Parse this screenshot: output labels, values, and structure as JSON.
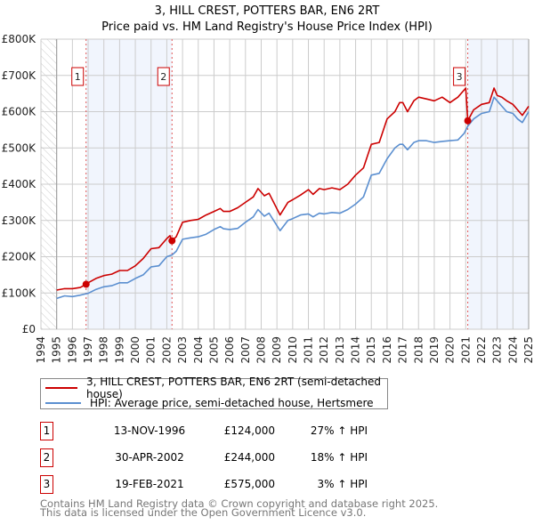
{
  "chart_data": {
    "type": "line",
    "title": "3, HILL CREST, POTTERS BAR, EN6 2RT",
    "subtitle": "Price paid vs. HM Land Registry's House Price Index (HPI)",
    "xlim": [
      1994,
      2025
    ],
    "ylim": [
      0,
      800000
    ],
    "x_ticks": [
      "1994",
      "1995",
      "1996",
      "1997",
      "1998",
      "1999",
      "2000",
      "2001",
      "2002",
      "2003",
      "2004",
      "2005",
      "2006",
      "2007",
      "2008",
      "2009",
      "2010",
      "2011",
      "2012",
      "2013",
      "2014",
      "2015",
      "2016",
      "2017",
      "2018",
      "2019",
      "2020",
      "2021",
      "2022",
      "2023",
      "2024",
      "2025"
    ],
    "y_ticks": [
      {
        "v": 0,
        "label": "£0"
      },
      {
        "v": 100000,
        "label": "£100K"
      },
      {
        "v": 200000,
        "label": "£200K"
      },
      {
        "v": 300000,
        "label": "£300K"
      },
      {
        "v": 400000,
        "label": "£400K"
      },
      {
        "v": 500000,
        "label": "£500K"
      },
      {
        "v": 600000,
        "label": "£600K"
      },
      {
        "v": 700000,
        "label": "£700K"
      },
      {
        "v": 800000,
        "label": "£800K"
      }
    ],
    "grid": true,
    "series": [
      {
        "name": "3, HILL CREST, POTTERS BAR, EN6 2RT (semi-detached house)",
        "color": "#cc0000",
        "x": [
          1995,
          1995.5,
          1996,
          1996.5,
          1996.87,
          1997,
          1997.5,
          1998,
          1998.5,
          1999,
          1999.5,
          2000,
          2000.5,
          2001,
          2001.5,
          2002,
          2002.2,
          2002.33,
          2002.6,
          2003,
          2003.5,
          2004,
          2004.5,
          2005,
          2005.4,
          2005.6,
          2006,
          2006.5,
          2007,
          2007.5,
          2007.8,
          2008.2,
          2008.5,
          2009.2,
          2009.7,
          2010,
          2010.5,
          2011,
          2011.3,
          2011.7,
          2012,
          2012.5,
          2013,
          2013.5,
          2014,
          2014.5,
          2015,
          2015.5,
          2016,
          2016.5,
          2016.8,
          2017,
          2017.3,
          2017.7,
          2018,
          2018.5,
          2019,
          2019.5,
          2020,
          2020.5,
          2020.9,
          2021.0,
          2021.13,
          2021.5,
          2022,
          2022.5,
          2022.8,
          2023,
          2023.3,
          2023.6,
          2024,
          2024.3,
          2024.6,
          2025
        ],
        "y": [
          108000,
          112000,
          112000,
          115000,
          124000,
          128000,
          140000,
          148000,
          152000,
          162000,
          162000,
          175000,
          195000,
          222000,
          225000,
          250000,
          258000,
          244000,
          255000,
          295000,
          300000,
          303000,
          315000,
          325000,
          333000,
          325000,
          325000,
          335000,
          350000,
          365000,
          388000,
          368000,
          375000,
          315000,
          350000,
          357000,
          370000,
          385000,
          372000,
          388000,
          385000,
          390000,
          385000,
          400000,
          425000,
          445000,
          510000,
          515000,
          580000,
          600000,
          625000,
          625000,
          600000,
          630000,
          640000,
          635000,
          630000,
          640000,
          625000,
          640000,
          660000,
          665000,
          575000,
          605000,
          620000,
          625000,
          665000,
          645000,
          640000,
          630000,
          620000,
          605000,
          590000,
          615000
        ]
      },
      {
        "name": "HPI: Average price, semi-detached house, Hertsmere",
        "color": "#5b8fd0",
        "x": [
          1995,
          1995.5,
          1996,
          1996.5,
          1996.87,
          1997,
          1997.5,
          1998,
          1998.5,
          1999,
          1999.5,
          2000,
          2000.5,
          2001,
          2001.5,
          2002,
          2002.33,
          2002.6,
          2003,
          2003.5,
          2004,
          2004.5,
          2005,
          2005.4,
          2005.6,
          2006,
          2006.5,
          2007,
          2007.5,
          2007.8,
          2008.2,
          2008.5,
          2009.2,
          2009.7,
          2010,
          2010.5,
          2011,
          2011.3,
          2011.7,
          2012,
          2012.5,
          2013,
          2013.5,
          2014,
          2014.5,
          2015,
          2015.5,
          2016,
          2016.5,
          2016.8,
          2017,
          2017.3,
          2017.7,
          2018,
          2018.5,
          2019,
          2019.5,
          2020,
          2020.5,
          2020.9,
          2021.13,
          2021.5,
          2022,
          2022.5,
          2022.8,
          2023,
          2023.3,
          2023.6,
          2024,
          2024.3,
          2024.6,
          2025
        ],
        "y": [
          85000,
          92000,
          90000,
          94000,
          98000,
          99000,
          110000,
          117000,
          120000,
          128000,
          128000,
          140000,
          150000,
          172000,
          175000,
          200000,
          205000,
          215000,
          248000,
          252000,
          255000,
          262000,
          275000,
          283000,
          277000,
          275000,
          278000,
          295000,
          310000,
          330000,
          312000,
          320000,
          272000,
          300000,
          305000,
          315000,
          318000,
          310000,
          320000,
          318000,
          322000,
          320000,
          330000,
          345000,
          365000,
          425000,
          430000,
          470000,
          500000,
          510000,
          510000,
          495000,
          515000,
          520000,
          520000,
          515000,
          518000,
          520000,
          522000,
          540000,
          560000,
          580000,
          595000,
          600000,
          640000,
          630000,
          615000,
          600000,
          595000,
          580000,
          570000,
          600000
        ]
      }
    ],
    "sales": [
      {
        "n": "1",
        "x": 1996.87,
        "y": 124000,
        "date": "13-NOV-1996",
        "price": "£124,000",
        "hpi": "27% ↑ HPI"
      },
      {
        "n": "2",
        "x": 2002.33,
        "y": 244000,
        "date": "30-APR-2002",
        "price": "£244,000",
        "hpi": "18% ↑ HPI"
      },
      {
        "n": "3",
        "x": 2021.13,
        "y": 575000,
        "date": "19-FEB-2021",
        "price": "£575,000",
        "hpi": "3% ↑ HPI"
      }
    ],
    "shaded_ranges": [
      [
        1996.87,
        2002.33
      ],
      [
        2021.13,
        2025
      ]
    ],
    "hatched_range": [
      1994,
      1995
    ],
    "legend_placement": "below"
  },
  "legend": {
    "property": "3, HILL CREST, POTTERS BAR, EN6 2RT (semi-detached house)",
    "hpi": "HPI: Average price, semi-detached house, Hertsmere"
  },
  "footer": {
    "line1": "Contains HM Land Registry data © Crown copyright and database right 2025.",
    "line2": "This data is licensed under the Open Government Licence v3.0."
  }
}
